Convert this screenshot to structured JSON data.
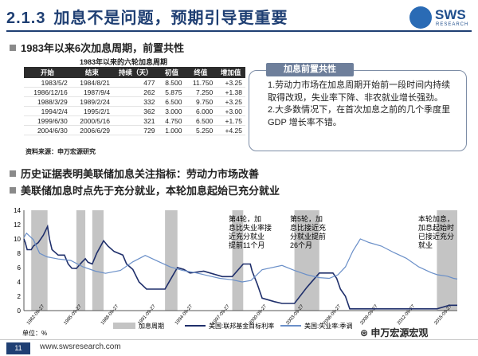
{
  "header": {
    "section_number": "2.1.3",
    "title": "加息不是问题，预期引导更重要",
    "logo_text": "SWS",
    "logo_sub": "RESEARCH"
  },
  "top_bullet": "1983年以来6次加息周期，前置共性",
  "table": {
    "caption": "1983年以来的六轮加息周期",
    "columns": [
      "开始",
      "结束",
      "持续（天）",
      "初值",
      "终值",
      "增加值"
    ],
    "rows": [
      [
        "1983/5/2",
        "1984/8/21",
        "477",
        "8.500",
        "11.750",
        "+3.25"
      ],
      [
        "1986/12/16",
        "1987/9/4",
        "262",
        "5.875",
        "7.250",
        "+1.38"
      ],
      [
        "1988/3/29",
        "1989/2/24",
        "332",
        "6.500",
        "9.750",
        "+3.25"
      ],
      [
        "1994/2/4",
        "1995/2/1",
        "362",
        "3.000",
        "6.000",
        "+3.00"
      ],
      [
        "1999/6/30",
        "2000/5/16",
        "321",
        "4.750",
        "6.500",
        "+1.75"
      ],
      [
        "2004/6/30",
        "2006/6/29",
        "729",
        "1.000",
        "5.250",
        "+4.25"
      ]
    ],
    "source": "资料来源：申万宏源研究"
  },
  "box": {
    "tag": "加息前置共性",
    "line1": "1.劳动力市场在加息周期开始前一段时间内持续取得改观，失业率下降、非农就业增长强劲。",
    "line2": "2.大多数情况下，在首次加息之前的几个季度里GDP 增长率不错。"
  },
  "mid_bullets": [
    "历史证据表明美联储加息关注指标：劳动力市场改善",
    "美联储加息时点先于充分就业，本轮加息起始已充分就业"
  ],
  "chart_data": {
    "type": "line",
    "ylim": [
      0,
      14
    ],
    "yticks": [
      0,
      2,
      4,
      6,
      8,
      10,
      12,
      14
    ],
    "y_unit_label": "单位：%",
    "xlim": [
      1982.74,
      2017.6
    ],
    "x_tick_labels": [
      "1982-09-27",
      "1985-09-27",
      "1988-09-27",
      "1991-09-27",
      "1994-09-27",
      "1997-09-27",
      "2000-09-27",
      "2003-09-27",
      "2006-09-27",
      "2009-09-27",
      "2012-09-27",
      "2015-09-27"
    ],
    "hike_periods": [
      [
        1983.33,
        1984.64
      ],
      [
        1986.96,
        1987.68
      ],
      [
        1988.24,
        1989.15
      ],
      [
        1994.09,
        1995.09
      ],
      [
        1999.5,
        2000.38
      ],
      [
        2004.5,
        2006.5
      ],
      [
        2015.96,
        2017.6
      ]
    ],
    "series": [
      {
        "name": "美国:联邦基金目标利率",
        "color": "#1f2f6b",
        "points": [
          [
            1982.74,
            10.0
          ],
          [
            1982.85,
            9.5
          ],
          [
            1983.0,
            8.5
          ],
          [
            1983.33,
            8.5
          ],
          [
            1983.5,
            9.0
          ],
          [
            1983.9,
            9.5
          ],
          [
            1984.3,
            10.5
          ],
          [
            1984.64,
            11.75
          ],
          [
            1984.8,
            10.0
          ],
          [
            1985.0,
            8.5
          ],
          [
            1985.5,
            7.75
          ],
          [
            1986.0,
            7.75
          ],
          [
            1986.3,
            6.5
          ],
          [
            1986.6,
            5.9
          ],
          [
            1986.96,
            5.875
          ],
          [
            1987.4,
            6.75
          ],
          [
            1987.68,
            7.25
          ],
          [
            1987.9,
            6.75
          ],
          [
            1988.24,
            6.5
          ],
          [
            1988.6,
            8.0
          ],
          [
            1989.15,
            9.75
          ],
          [
            1989.5,
            9.0
          ],
          [
            1990.0,
            8.25
          ],
          [
            1990.7,
            7.75
          ],
          [
            1991.0,
            6.5
          ],
          [
            1991.5,
            5.75
          ],
          [
            1992.0,
            4.0
          ],
          [
            1992.6,
            3.0
          ],
          [
            1994.09,
            3.0
          ],
          [
            1994.5,
            4.25
          ],
          [
            1995.09,
            6.0
          ],
          [
            1995.6,
            5.75
          ],
          [
            1996.1,
            5.25
          ],
          [
            1997.2,
            5.5
          ],
          [
            1998.7,
            4.75
          ],
          [
            1999.5,
            4.75
          ],
          [
            2000.38,
            6.5
          ],
          [
            2000.95,
            6.5
          ],
          [
            2001.1,
            5.5
          ],
          [
            2001.5,
            3.75
          ],
          [
            2001.9,
            1.75
          ],
          [
            2002.9,
            1.25
          ],
          [
            2003.5,
            1.0
          ],
          [
            2004.5,
            1.0
          ],
          [
            2005.5,
            3.25
          ],
          [
            2006.5,
            5.25
          ],
          [
            2007.6,
            5.25
          ],
          [
            2007.9,
            4.5
          ],
          [
            2008.2,
            3.0
          ],
          [
            2008.6,
            2.0
          ],
          [
            2008.95,
            0.25
          ],
          [
            2015.96,
            0.25
          ],
          [
            2016.96,
            0.75
          ],
          [
            2017.6,
            0.75
          ]
        ]
      },
      {
        "name": "美国:失业率:季调",
        "color": "#6a8fc8",
        "points": [
          [
            1982.74,
            10.2
          ],
          [
            1982.95,
            10.8
          ],
          [
            1983.5,
            9.9
          ],
          [
            1984.0,
            8.0
          ],
          [
            1984.6,
            7.5
          ],
          [
            1985.5,
            7.2
          ],
          [
            1986.5,
            7.0
          ],
          [
            1987.5,
            6.1
          ],
          [
            1988.5,
            5.5
          ],
          [
            1989.3,
            5.2
          ],
          [
            1990.5,
            5.6
          ],
          [
            1991.5,
            6.8
          ],
          [
            1992.5,
            7.7
          ],
          [
            1993.5,
            6.9
          ],
          [
            1994.5,
            6.1
          ],
          [
            1995.5,
            5.6
          ],
          [
            1996.5,
            5.3
          ],
          [
            1997.5,
            4.9
          ],
          [
            1998.5,
            4.5
          ],
          [
            1999.5,
            4.3
          ],
          [
            2000.3,
            4.0
          ],
          [
            2001.0,
            4.2
          ],
          [
            2001.9,
            5.7
          ],
          [
            2003.5,
            6.3
          ],
          [
            2004.5,
            5.6
          ],
          [
            2005.5,
            5.0
          ],
          [
            2006.5,
            4.6
          ],
          [
            2007.3,
            4.5
          ],
          [
            2008.0,
            5.0
          ],
          [
            2008.6,
            6.1
          ],
          [
            2009.2,
            8.3
          ],
          [
            2009.8,
            10.0
          ],
          [
            2010.5,
            9.5
          ],
          [
            2011.5,
            9.0
          ],
          [
            2012.5,
            8.1
          ],
          [
            2013.5,
            7.3
          ],
          [
            2014.5,
            6.1
          ],
          [
            2015.5,
            5.3
          ],
          [
            2016.0,
            5.0
          ],
          [
            2016.8,
            4.8
          ],
          [
            2017.3,
            4.5
          ],
          [
            2017.6,
            4.4
          ]
        ]
      }
    ],
    "annotations": [
      {
        "text": "第4轮，加息比失业率接近充分就业提前11个月",
        "lines": [
          "第4轮，加",
          "息比失业率接",
          "近充分就业",
          "提前11个月"
        ]
      },
      {
        "text": "第5轮，加息比接近充分就业提前26个月",
        "lines": [
          "第5轮，加",
          "息比接近充",
          "分就业提前",
          "26个月"
        ]
      },
      {
        "text": "本轮加息，加息起始时已接近充分就业",
        "lines": [
          "本轮加息，",
          "加息起始时",
          "已接近充分",
          "就业"
        ]
      }
    ],
    "legend": [
      "加息周期",
      "美国:联邦基金目标利率",
      "美国:失业率:季调"
    ]
  },
  "footer": {
    "page": "11",
    "url": "www.swsresearch.com",
    "watermark": "申万宏源宏观"
  }
}
